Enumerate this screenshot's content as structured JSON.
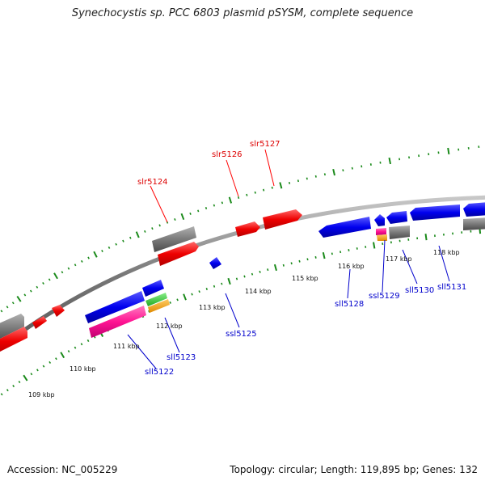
{
  "title": "Synechocystis sp. PCC 6803 plasmid pSYSM, complete sequence",
  "footer": {
    "accession": "Accession: NC_005229",
    "summary": "Topology: circular; Length: 119,895 bp; Genes: 132"
  },
  "colors": {
    "forward": "#ff0000",
    "reverse": "#0000ff",
    "backbone": "#888888",
    "tick": "#1a8a1a",
    "other": "#808080",
    "pink": "#ff1493",
    "green": "#33cc33",
    "orange": "#ffa500"
  },
  "ticks": [
    {
      "label": "109 kbp"
    },
    {
      "label": "110 kbp"
    },
    {
      "label": "111 kbp"
    },
    {
      "label": "112 kbp"
    },
    {
      "label": "113 kbp"
    },
    {
      "label": "114 kbp"
    },
    {
      "label": "115 kbp"
    },
    {
      "label": "116 kbp"
    },
    {
      "label": "117 kbp"
    },
    {
      "label": "118 kbp"
    }
  ],
  "gene_labels": {
    "slr5124": "slr5124",
    "slr5126": "slr5126",
    "slr5127": "slr5127",
    "sll5122": "sll5122",
    "sll5123": "sll5123",
    "ssl5125": "ssl5125",
    "sll5128": "sll5128",
    "ssl5129": "ssl5129",
    "sll5130": "sll5130",
    "sll5131": "sll5131"
  }
}
